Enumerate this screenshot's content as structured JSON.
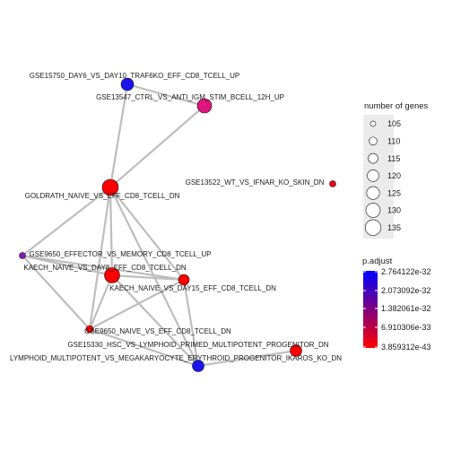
{
  "network": {
    "nodes": [
      {
        "id": "n1",
        "label": "GSE15750_DAY6_VS_DAY10_TRAF6KO_EFF_CD8_TCELL_UP",
        "color": "#1a14f0"
      },
      {
        "id": "n2",
        "label": "GSE13547_CTRL_VS_ANTI_IGM_STIM_BCELL_12H_UP",
        "color": "#e0157e"
      },
      {
        "id": "n3",
        "label": "GOLDRATH_NAIVE_VS_EFF_CD8_TCELL_DN",
        "color": "#ff0000"
      },
      {
        "id": "n4",
        "label": "GSE13522_WT_VS_IFNAR_KO_SKIN_DN",
        "color": "#ee0018"
      },
      {
        "id": "n5",
        "label": "GSE9650_EFFECTOR_VS_MEMORY_CD8_TCELL_UP",
        "color": "#8a16b8"
      },
      {
        "id": "n6",
        "label": "KAECH_NAIVE_VS_DAY8_EFF_CD8_TCELL_DN",
        "color": "#ff0000"
      },
      {
        "id": "n7",
        "label": "KAECH_NAIVE_VS_DAY15_EFF_CD8_TCELL_DN",
        "color": "#ff0000"
      },
      {
        "id": "n8",
        "label": "GSE9650_NAIVE_VS_EFF_CD8_TCELL_DN",
        "color": "#ff0000"
      },
      {
        "id": "n9",
        "label": "GSE15330_HSC_VS_LYMPHOID_PRIMED_MULTIPOTENT_PROGENITOR_DN",
        "color": "#ff0000"
      },
      {
        "id": "n10",
        "label": "LYMPHOID_MULTIPOTENT_VS_MEGAKARYOCYTE_ERYTHROID_PROGENITOR_IKAROS_KO_DN",
        "color": "#1a14f0"
      }
    ]
  },
  "legend_size": {
    "title": "number of genes",
    "entries": [
      "105",
      "110",
      "115",
      "120",
      "125",
      "130",
      "135"
    ]
  },
  "legend_color": {
    "title": "p.adjust",
    "ticks": [
      "2.764122e-32",
      "2.073092e-32",
      "1.382061e-32",
      "6.910306e-33",
      "3.859312e-43"
    ],
    "gradient_top": "#0000ff",
    "gradient_bottom": "#ff0000"
  }
}
